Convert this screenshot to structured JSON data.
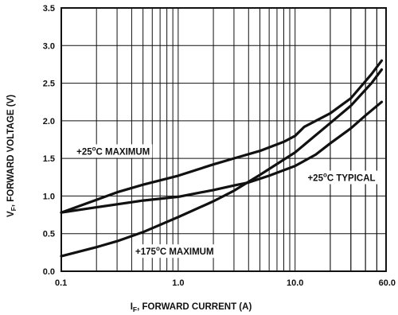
{
  "chart_data": {
    "type": "line",
    "x_scale": "log",
    "xlim": [
      0.1,
      60.0
    ],
    "ylim": [
      0.0,
      3.5
    ],
    "grid": true,
    "x_ticks": [
      0.1,
      1.0,
      10.0,
      60.0
    ],
    "x_tick_labels": [
      "0.1",
      "1.0",
      "10.0",
      "60.0"
    ],
    "y_ticks": [
      0.0,
      0.5,
      1.0,
      1.5,
      2.0,
      2.5,
      3.0,
      3.5
    ],
    "y_tick_labels": [
      "0.0",
      "0.5",
      "1.0",
      "1.5",
      "2.0",
      "2.5",
      "3.0",
      "3.5"
    ],
    "xlabel_parts": [
      "I",
      "F",
      ", FORWARD CURRENT (A)"
    ],
    "ylabel_parts": [
      "V",
      "F",
      ", FORWARD VOLTAGE (V)"
    ],
    "series": [
      {
        "name": "+25°C MAXIMUM",
        "x": [
          0.1,
          0.2,
          0.3,
          0.5,
          1.0,
          2.0,
          3.0,
          5.0,
          8.0,
          10.0,
          12.0,
          20.0,
          30.0,
          45.0,
          55.0
        ],
        "y": [
          0.78,
          0.95,
          1.05,
          1.15,
          1.27,
          1.42,
          1.5,
          1.6,
          1.72,
          1.8,
          1.92,
          2.1,
          2.3,
          2.62,
          2.8
        ]
      },
      {
        "name": "+25°C TYPICAL",
        "x": [
          0.1,
          0.2,
          0.5,
          1.0,
          2.0,
          3.0,
          4.0,
          6.0,
          10.0,
          15.0,
          20.0,
          30.0,
          40.0,
          55.0
        ],
        "y": [
          0.78,
          0.85,
          0.94,
          0.99,
          1.08,
          1.14,
          1.18,
          1.27,
          1.4,
          1.55,
          1.7,
          1.9,
          2.07,
          2.25
        ]
      },
      {
        "name": "+175°C MAXIMUM",
        "x": [
          0.1,
          0.2,
          0.3,
          0.5,
          1.0,
          2.0,
          3.0,
          5.0,
          10.0,
          20.0,
          30.0,
          45.0,
          55.0
        ],
        "y": [
          0.2,
          0.32,
          0.4,
          0.52,
          0.72,
          0.93,
          1.07,
          1.28,
          1.58,
          1.97,
          2.2,
          2.5,
          2.68
        ]
      }
    ],
    "annotations": [
      {
        "parts": [
          "+25",
          "o",
          "C MAXIMUM"
        ],
        "x": 0.135,
        "y": 1.55
      },
      {
        "parts": [
          "+25",
          "o",
          "C TYPICAL"
        ],
        "x": 12.8,
        "y": 1.2
      },
      {
        "parts": [
          "+175",
          "o",
          "C MAXIMUM"
        ],
        "x": 0.43,
        "y": 0.22
      }
    ],
    "line_color": "#111111"
  }
}
